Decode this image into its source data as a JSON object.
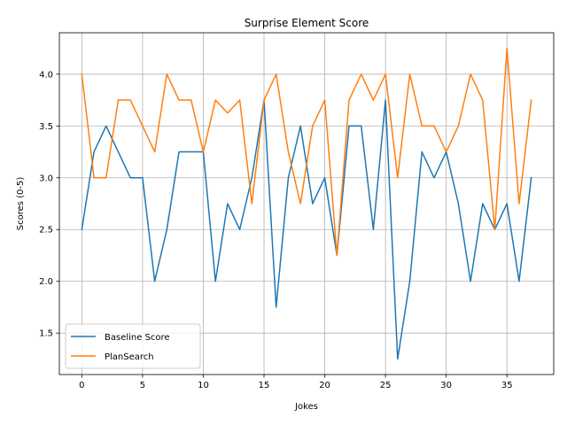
{
  "chart_data": {
    "type": "line",
    "title": "Surprise Element Score",
    "xlabel": "Jokes",
    "ylabel": "Scores (0-5)",
    "xlim": [
      -1.85,
      38.85
    ],
    "ylim": [
      1.1,
      4.4
    ],
    "xticks": [
      0,
      5,
      10,
      15,
      20,
      25,
      30,
      35
    ],
    "yticks": [
      1.5,
      2.0,
      2.5,
      3.0,
      3.5,
      4.0
    ],
    "ytick_labels": [
      "1.5",
      "2.0",
      "2.5",
      "3.0",
      "3.5",
      "4.0"
    ],
    "grid": true,
    "legend_position": "lower-left",
    "x": [
      0,
      1,
      2,
      3,
      4,
      5,
      6,
      7,
      8,
      9,
      10,
      11,
      12,
      13,
      14,
      15,
      16,
      17,
      18,
      19,
      20,
      21,
      22,
      23,
      24,
      25,
      26,
      27,
      28,
      29,
      30,
      31,
      32,
      33,
      34,
      35,
      36,
      37
    ],
    "series": [
      {
        "name": "Baseline Score",
        "color": "#1f77b4",
        "values": [
          2.5,
          3.25,
          3.5,
          3.25,
          3.0,
          3.0,
          2.0,
          2.5,
          3.25,
          3.25,
          3.25,
          2.0,
          2.75,
          2.5,
          3.0,
          3.75,
          1.75,
          3.0,
          3.5,
          2.75,
          3.0,
          2.25,
          3.5,
          3.5,
          2.5,
          3.75,
          1.25,
          2.0,
          3.25,
          3.0,
          3.25,
          2.75,
          2.0,
          2.75,
          2.5,
          2.75,
          2.0,
          3.0
        ]
      },
      {
        "name": "PlanSearch",
        "color": "#ff7f0e",
        "values": [
          4.0,
          3.0,
          3.0,
          3.75,
          3.75,
          3.5,
          3.25,
          4.0,
          3.75,
          3.75,
          3.25,
          3.75,
          3.625,
          3.75,
          2.75,
          3.75,
          4.0,
          3.25,
          2.75,
          3.5,
          3.75,
          2.25,
          3.75,
          4.0,
          3.75,
          4.0,
          3.0,
          4.0,
          3.5,
          3.5,
          3.25,
          3.5,
          4.0,
          3.75,
          2.5,
          4.25,
          2.75,
          3.75
        ]
      }
    ]
  }
}
